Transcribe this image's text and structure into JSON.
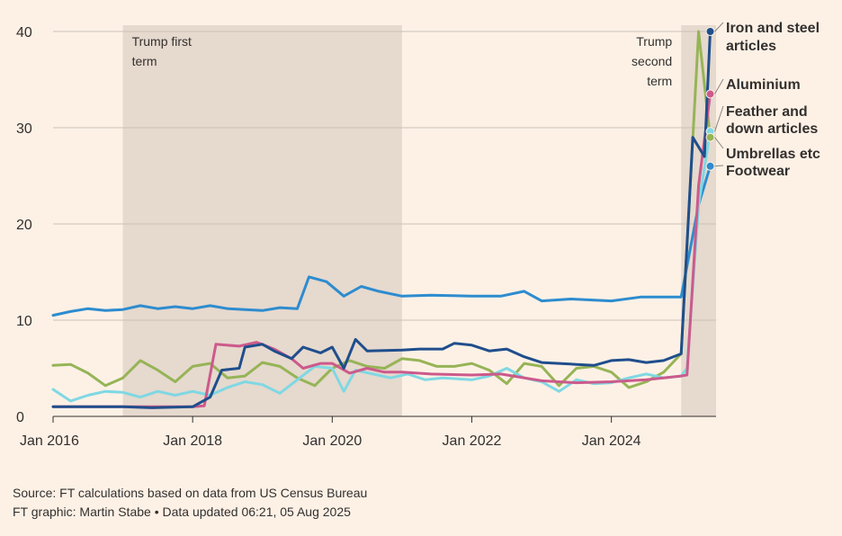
{
  "chart_data": {
    "type": "line",
    "title": "",
    "xlabel": "",
    "ylabel": "",
    "ylim": [
      0,
      40
    ],
    "yticks": [
      "0",
      "10",
      "20",
      "30",
      "40"
    ],
    "xlim": [
      "2016-01",
      "2025-07"
    ],
    "xtick_labels": [
      "Jan 2016",
      "Jan 2018",
      "Jan 2020",
      "Jan 2022",
      "Jan 2024"
    ],
    "xtick_dates": [
      "2016-01",
      "2018-01",
      "2020-01",
      "2022-01",
      "2024-01"
    ],
    "grid": "horizontal",
    "shaded_periods": [
      {
        "label": "Trump first term",
        "label_lines": [
          "Trump first",
          "term"
        ],
        "start": "2017-01",
        "end": "2021-01"
      },
      {
        "label": "Trump second term",
        "label_lines": [
          "Trump",
          "second",
          "term"
        ],
        "start": "2025-01",
        "end": "2025-07"
      }
    ],
    "series": [
      {
        "name": "Iron and steel articles",
        "label_lines": [
          "Iron and steel",
          "articles"
        ],
        "color": "#1f4e8c",
        "points": [
          [
            "2016-01",
            1.0
          ],
          [
            "2017-01",
            1.0
          ],
          [
            "2017-06",
            0.9
          ],
          [
            "2018-01",
            1.0
          ],
          [
            "2018-04",
            2.0
          ],
          [
            "2018-06",
            4.8
          ],
          [
            "2018-09",
            5.0
          ],
          [
            "2018-10",
            7.2
          ],
          [
            "2019-01",
            7.5
          ],
          [
            "2019-03",
            6.8
          ],
          [
            "2019-06",
            6.0
          ],
          [
            "2019-08",
            7.2
          ],
          [
            "2019-11",
            6.6
          ],
          [
            "2020-01",
            7.2
          ],
          [
            "2020-03",
            5.0
          ],
          [
            "2020-05",
            8.0
          ],
          [
            "2020-07",
            6.8
          ],
          [
            "2021-01",
            6.9
          ],
          [
            "2021-04",
            7.0
          ],
          [
            "2021-08",
            7.0
          ],
          [
            "2021-10",
            7.6
          ],
          [
            "2022-01",
            7.4
          ],
          [
            "2022-04",
            6.8
          ],
          [
            "2022-07",
            7.0
          ],
          [
            "2022-10",
            6.2
          ],
          [
            "2023-01",
            5.6
          ],
          [
            "2023-04",
            5.5
          ],
          [
            "2023-07",
            5.4
          ],
          [
            "2023-10",
            5.3
          ],
          [
            "2024-01",
            5.8
          ],
          [
            "2024-04",
            5.9
          ],
          [
            "2024-07",
            5.6
          ],
          [
            "2024-10",
            5.8
          ],
          [
            "2025-01",
            6.5
          ],
          [
            "2025-03",
            29.0
          ],
          [
            "2025-05",
            27.0
          ],
          [
            "2025-06",
            40.0
          ]
        ]
      },
      {
        "name": "Aluminium",
        "label_lines": [
          "Aluminium"
        ],
        "color": "#cc5a8b",
        "points": [
          [
            "2016-01",
            1.0
          ],
          [
            "2017-01",
            1.0
          ],
          [
            "2018-01",
            1.0
          ],
          [
            "2018-03",
            1.1
          ],
          [
            "2018-05",
            7.5
          ],
          [
            "2018-09",
            7.3
          ],
          [
            "2018-12",
            7.7
          ],
          [
            "2019-03",
            7.0
          ],
          [
            "2019-06",
            6.0
          ],
          [
            "2019-08",
            5.0
          ],
          [
            "2019-11",
            5.5
          ],
          [
            "2020-01",
            5.5
          ],
          [
            "2020-04",
            4.5
          ],
          [
            "2020-07",
            5.0
          ],
          [
            "2020-10",
            4.6
          ],
          [
            "2021-01",
            4.6
          ],
          [
            "2021-06",
            4.4
          ],
          [
            "2022-01",
            4.3
          ],
          [
            "2022-06",
            4.4
          ],
          [
            "2023-01",
            3.7
          ],
          [
            "2023-07",
            3.5
          ],
          [
            "2024-01",
            3.6
          ],
          [
            "2024-07",
            3.8
          ],
          [
            "2025-01",
            4.2
          ],
          [
            "2025-02",
            4.3
          ],
          [
            "2025-04",
            24.0
          ],
          [
            "2025-06",
            33.5
          ]
        ]
      },
      {
        "name": "Feather and down articles",
        "label_lines": [
          "Feather and",
          "down articles"
        ],
        "color": "#7fd8e3",
        "points": [
          [
            "2016-01",
            2.8
          ],
          [
            "2016-04",
            1.6
          ],
          [
            "2016-07",
            2.2
          ],
          [
            "2016-10",
            2.6
          ],
          [
            "2017-01",
            2.5
          ],
          [
            "2017-04",
            2.0
          ],
          [
            "2017-07",
            2.6
          ],
          [
            "2017-10",
            2.2
          ],
          [
            "2018-01",
            2.6
          ],
          [
            "2018-04",
            2.2
          ],
          [
            "2018-07",
            3.0
          ],
          [
            "2018-10",
            3.6
          ],
          [
            "2019-01",
            3.3
          ],
          [
            "2019-04",
            2.4
          ],
          [
            "2019-07",
            3.8
          ],
          [
            "2019-10",
            5.2
          ],
          [
            "2020-01",
            5.0
          ],
          [
            "2020-03",
            2.6
          ],
          [
            "2020-05",
            4.8
          ],
          [
            "2020-08",
            4.4
          ],
          [
            "2020-11",
            4.0
          ],
          [
            "2021-02",
            4.4
          ],
          [
            "2021-05",
            3.8
          ],
          [
            "2021-08",
            4.0
          ],
          [
            "2022-01",
            3.8
          ],
          [
            "2022-04",
            4.2
          ],
          [
            "2022-07",
            5.0
          ],
          [
            "2022-10",
            4.0
          ],
          [
            "2023-01",
            3.6
          ],
          [
            "2023-04",
            2.6
          ],
          [
            "2023-07",
            3.8
          ],
          [
            "2023-10",
            3.4
          ],
          [
            "2024-01",
            3.5
          ],
          [
            "2024-04",
            4.0
          ],
          [
            "2024-07",
            4.4
          ],
          [
            "2024-10",
            4.0
          ],
          [
            "2025-01",
            4.2
          ],
          [
            "2025-02",
            5.0
          ],
          [
            "2025-04",
            22.0
          ],
          [
            "2025-06",
            29.6
          ]
        ]
      },
      {
        "name": "Umbrellas etc",
        "label_lines": [
          "Umbrellas etc"
        ],
        "color": "#96b456",
        "points": [
          [
            "2016-01",
            5.3
          ],
          [
            "2016-04",
            5.4
          ],
          [
            "2016-07",
            4.5
          ],
          [
            "2016-10",
            3.2
          ],
          [
            "2017-01",
            4.0
          ],
          [
            "2017-04",
            5.8
          ],
          [
            "2017-07",
            4.8
          ],
          [
            "2017-10",
            3.6
          ],
          [
            "2018-01",
            5.2
          ],
          [
            "2018-04",
            5.5
          ],
          [
            "2018-07",
            4.0
          ],
          [
            "2018-10",
            4.2
          ],
          [
            "2019-01",
            5.6
          ],
          [
            "2019-04",
            5.2
          ],
          [
            "2019-07",
            4.0
          ],
          [
            "2019-10",
            3.2
          ],
          [
            "2020-01",
            5.0
          ],
          [
            "2020-04",
            5.8
          ],
          [
            "2020-07",
            5.2
          ],
          [
            "2020-10",
            5.0
          ],
          [
            "2021-01",
            6.0
          ],
          [
            "2021-04",
            5.8
          ],
          [
            "2021-07",
            5.2
          ],
          [
            "2021-10",
            5.2
          ],
          [
            "2022-01",
            5.5
          ],
          [
            "2022-04",
            4.8
          ],
          [
            "2022-07",
            3.4
          ],
          [
            "2022-10",
            5.5
          ],
          [
            "2023-01",
            5.2
          ],
          [
            "2023-04",
            3.2
          ],
          [
            "2023-07",
            5.0
          ],
          [
            "2023-10",
            5.2
          ],
          [
            "2024-01",
            4.6
          ],
          [
            "2024-04",
            3.0
          ],
          [
            "2024-07",
            3.6
          ],
          [
            "2024-10",
            4.6
          ],
          [
            "2025-01",
            6.5
          ],
          [
            "2025-04",
            40.0
          ],
          [
            "2025-06",
            29.0
          ]
        ]
      },
      {
        "name": "Footwear",
        "label_lines": [
          "Footwear"
        ],
        "color": "#2d8ccf",
        "points": [
          [
            "2016-01",
            10.5
          ],
          [
            "2016-04",
            10.9
          ],
          [
            "2016-07",
            11.2
          ],
          [
            "2016-10",
            11.0
          ],
          [
            "2017-01",
            11.1
          ],
          [
            "2017-04",
            11.5
          ],
          [
            "2017-07",
            11.2
          ],
          [
            "2017-10",
            11.4
          ],
          [
            "2018-01",
            11.2
          ],
          [
            "2018-04",
            11.5
          ],
          [
            "2018-07",
            11.2
          ],
          [
            "2018-10",
            11.1
          ],
          [
            "2019-01",
            11.0
          ],
          [
            "2019-04",
            11.3
          ],
          [
            "2019-07",
            11.2
          ],
          [
            "2019-09",
            14.5
          ],
          [
            "2019-12",
            14.0
          ],
          [
            "2020-03",
            12.5
          ],
          [
            "2020-06",
            13.5
          ],
          [
            "2020-09",
            13.0
          ],
          [
            "2021-01",
            12.5
          ],
          [
            "2021-06",
            12.6
          ],
          [
            "2022-01",
            12.5
          ],
          [
            "2022-06",
            12.5
          ],
          [
            "2022-10",
            13.0
          ],
          [
            "2023-01",
            12.0
          ],
          [
            "2023-06",
            12.2
          ],
          [
            "2024-01",
            12.0
          ],
          [
            "2024-06",
            12.4
          ],
          [
            "2025-01",
            12.4
          ],
          [
            "2025-04",
            22.0
          ],
          [
            "2025-06",
            26.0
          ]
        ]
      }
    ]
  },
  "footer": {
    "source": "Source: FT calculations based on data from US Census Bureau",
    "credit": "FT graphic: Martin Stabe • Data updated 06:21, 05 Aug 2025"
  }
}
